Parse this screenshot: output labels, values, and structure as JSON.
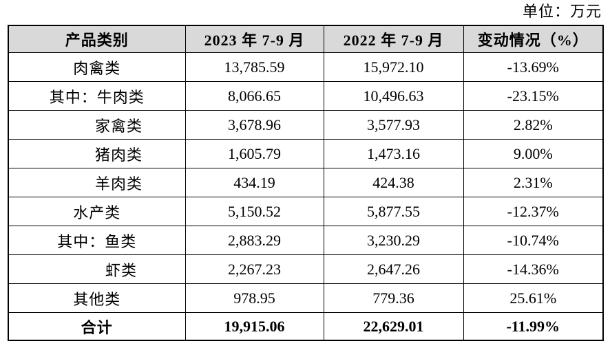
{
  "unit_label": "单位：万元",
  "theme": {
    "header_bg": "#d9d9d9",
    "border_color": "#000000",
    "text_color": "#000000"
  },
  "table": {
    "columns": [
      "产品类别",
      "2023 年 7-9 月",
      "2022 年 7-9 月",
      "变动情况（%）"
    ],
    "rows": [
      {
        "label": "肉禽类",
        "indent": "center",
        "bold": false,
        "values": [
          "13,785.59",
          "15,972.10",
          "-13.69%"
        ]
      },
      {
        "label": "其中：牛肉类",
        "indent": "center",
        "bold": false,
        "values": [
          "8,066.65",
          "10,496.63",
          "-23.15%"
        ]
      },
      {
        "label": "家禽类",
        "indent": "sub",
        "bold": false,
        "values": [
          "3,678.96",
          "3,577.93",
          "2.82%"
        ]
      },
      {
        "label": "猪肉类",
        "indent": "sub",
        "bold": false,
        "values": [
          "1,605.79",
          "1,473.16",
          "9.00%"
        ]
      },
      {
        "label": "羊肉类",
        "indent": "sub",
        "bold": false,
        "values": [
          "434.19",
          "424.38",
          "2.31%"
        ]
      },
      {
        "label": "水产类",
        "indent": "center",
        "bold": false,
        "values": [
          "5,150.52",
          "5,877.55",
          "-12.37%"
        ]
      },
      {
        "label": "其中：鱼类",
        "indent": "center",
        "bold": false,
        "values": [
          "2,883.29",
          "3,230.29",
          "-10.74%"
        ]
      },
      {
        "label": "虾类",
        "indent": "sub2",
        "bold": false,
        "values": [
          "2,267.23",
          "2,647.26",
          "-14.36%"
        ]
      },
      {
        "label": "其他类",
        "indent": "center",
        "bold": false,
        "values": [
          "978.95",
          "779.36",
          "25.61%"
        ]
      },
      {
        "label": "合计",
        "indent": "center",
        "bold": true,
        "values": [
          "19,915.06",
          "22,629.01",
          "-11.99%"
        ]
      }
    ]
  }
}
